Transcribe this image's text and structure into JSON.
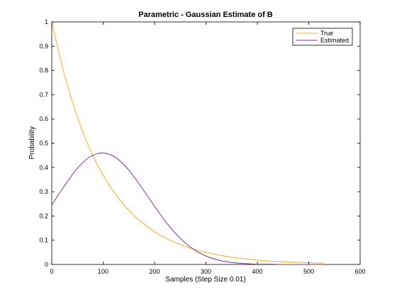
{
  "chart_data": {
    "type": "line",
    "title": "Parametric - Gaussian Estimate of B",
    "xlabel": "Samples (Step Size 0.01)",
    "ylabel": "Probability",
    "xlim": [
      0,
      600
    ],
    "ylim": [
      0,
      1
    ],
    "xticks": [
      "0",
      "100",
      "200",
      "300",
      "400",
      "500",
      "600"
    ],
    "yticks": [
      "0",
      "0.1",
      "0.2",
      "0.3",
      "0.4",
      "0.5",
      "0.6",
      "0.7",
      "0.8",
      "0.9",
      "1"
    ],
    "grid": false,
    "legend_position": "top-right",
    "series": [
      {
        "name": "True",
        "color": "#EDB120",
        "x": [
          0,
          25,
          50,
          75,
          100,
          125,
          150,
          175,
          200,
          225,
          250,
          275,
          300,
          325,
          350,
          375,
          400,
          425,
          450,
          475,
          500,
          530
        ],
        "y": [
          1.0,
          0.779,
          0.607,
          0.472,
          0.368,
          0.287,
          0.223,
          0.174,
          0.135,
          0.105,
          0.082,
          0.064,
          0.05,
          0.039,
          0.03,
          0.024,
          0.018,
          0.014,
          0.011,
          0.009,
          0.007,
          0.005
        ]
      },
      {
        "name": "Estimated",
        "color": "#7E2F8E",
        "x": [
          0,
          25,
          50,
          75,
          100,
          125,
          150,
          175,
          200,
          225,
          250,
          275,
          300,
          325,
          350,
          375,
          400,
          425,
          450,
          475,
          500,
          530
        ],
        "y": [
          0.245,
          0.325,
          0.397,
          0.445,
          0.46,
          0.44,
          0.389,
          0.317,
          0.24,
          0.167,
          0.108,
          0.064,
          0.035,
          0.018,
          0.008,
          0.004,
          0.001,
          0.001,
          0.0,
          0.0,
          0.0,
          0.0
        ]
      }
    ]
  }
}
